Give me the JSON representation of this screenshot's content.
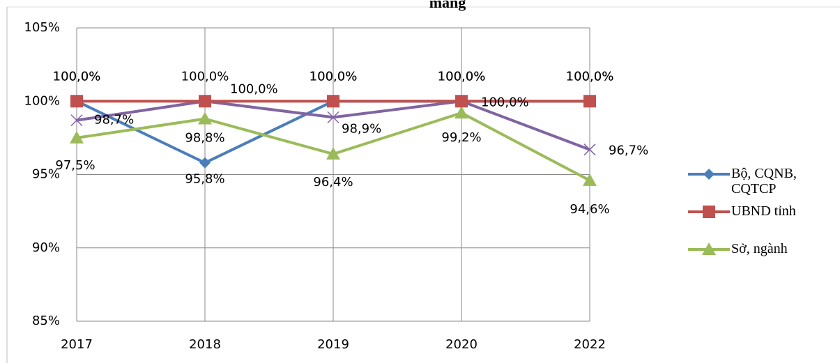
{
  "chart_data": {
    "type": "line",
    "title": "mang",
    "categories": [
      "2017",
      "2018",
      "2019",
      "2020",
      "2022"
    ],
    "series": [
      {
        "name": "Bộ, CQNB, CQTCP",
        "color": "#4a7ebb",
        "marker": "diamond",
        "values": [
          100,
          95.8,
          100,
          100,
          100
        ],
        "value_labels": [
          "100,0%",
          "95,8%",
          "100,0%",
          "100,0%",
          "100,0%"
        ]
      },
      {
        "name": "UBND tỉnh",
        "color": "#c0504d",
        "marker": "square",
        "values": [
          100,
          100,
          100,
          100,
          100
        ],
        "value_labels": [
          "100,0%",
          "100,0%",
          "100,0%",
          "100,0%",
          "100,0%"
        ]
      },
      {
        "name": "Sở, ngành",
        "color": "#9bbb59",
        "marker": "triangle",
        "values": [
          97.5,
          98.8,
          96.4,
          99.2,
          94.6
        ],
        "value_labels": [
          "97,5%",
          "98,8%",
          "96,4%",
          "99,2%",
          "94,6%"
        ]
      },
      {
        "color": "#8064a2",
        "marker": "x",
        "values": [
          98.7,
          100,
          98.9,
          100,
          96.7
        ],
        "value_labels": [
          "98,7%",
          "100,0%",
          "98,9%",
          "100,0%",
          "96,7%"
        ]
      }
    ],
    "ylim": [
      85,
      105
    ],
    "yticks": [
      {
        "value": 85,
        "label": "85%"
      },
      {
        "value": 90,
        "label": "90%"
      },
      {
        "value": 95,
        "label": "95%"
      },
      {
        "value": 100,
        "label": "100%"
      },
      {
        "value": 105,
        "label": "105%"
      }
    ],
    "grid": true,
    "legend": "right"
  }
}
